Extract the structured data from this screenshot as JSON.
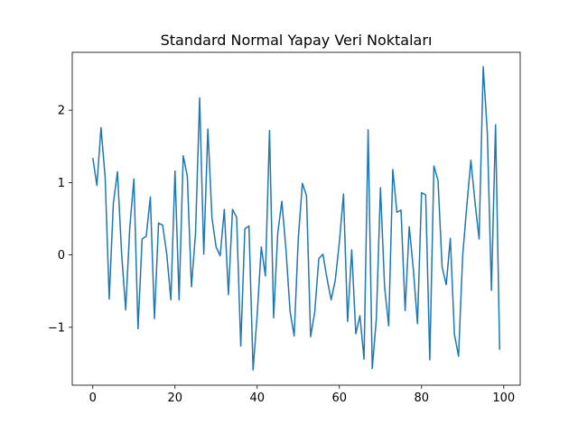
{
  "chart_data": {
    "type": "line",
    "title": "Standard Normal Yapay Veri Noktaları",
    "xlabel": "",
    "ylabel": "",
    "xlim": [
      -5,
      104
    ],
    "ylim": [
      -1.8,
      2.8
    ],
    "x_ticks": [
      0,
      20,
      40,
      60,
      80,
      100
    ],
    "y_ticks": [
      -1,
      0,
      1,
      2
    ],
    "y_tick_labels": [
      "−1",
      "0",
      "1",
      "2"
    ],
    "grid": false,
    "legend": "none",
    "line_color": "#1f77b4",
    "series": [
      {
        "x": [
          0,
          1,
          2,
          3,
          4,
          5,
          6,
          7,
          8,
          9,
          10,
          11,
          12,
          13,
          14,
          15,
          16,
          17,
          18,
          19,
          20,
          21,
          22,
          23,
          24,
          25,
          26,
          27,
          28,
          29,
          30,
          31,
          32,
          33,
          34,
          35,
          36,
          37,
          38,
          39,
          40,
          41,
          42,
          43,
          44,
          45,
          46,
          47,
          48,
          49,
          50,
          51,
          52,
          53,
          54,
          55,
          56,
          57,
          58,
          59,
          60,
          61,
          62,
          63,
          64,
          65,
          66,
          67,
          68,
          69,
          70,
          71,
          72,
          73,
          74,
          75,
          76,
          77,
          78,
          79,
          80,
          81,
          82,
          83,
          84,
          85,
          86,
          87,
          88,
          89,
          90,
          91,
          92,
          93,
          94,
          95,
          96,
          97,
          98,
          99
        ],
        "values": [
          1.34,
          0.96,
          1.76,
          1.08,
          -0.61,
          0.71,
          1.15,
          0.03,
          -0.76,
          0.38,
          1.05,
          -1.02,
          0.22,
          0.26,
          0.8,
          -0.88,
          0.44,
          0.41,
          0.01,
          -0.62,
          1.16,
          -0.62,
          1.37,
          1.09,
          -0.44,
          0.3,
          2.17,
          0.01,
          1.74,
          0.51,
          0.11,
          -0.01,
          0.63,
          -0.55,
          0.63,
          0.52,
          -1.26,
          0.36,
          0.4,
          -1.59,
          -0.83,
          0.11,
          -0.29,
          1.72,
          -0.87,
          0.3,
          0.74,
          0.08,
          -0.78,
          -1.12,
          0.23,
          0.99,
          0.82,
          -1.13,
          -0.79,
          -0.05,
          0.01,
          -0.33,
          -0.62,
          -0.35,
          0.18,
          0.84,
          -0.92,
          0.07,
          -1.09,
          -0.84,
          -1.44,
          1.73,
          -1.57,
          -0.88,
          0.93,
          -0.44,
          -0.98,
          1.18,
          0.59,
          0.62,
          -0.77,
          0.39,
          -0.2,
          -0.95,
          0.86,
          0.83,
          -1.45,
          1.23,
          1.03,
          -0.17,
          -0.41,
          0.23,
          -1.1,
          -1.4,
          -0.01,
          0.67,
          1.31,
          0.73,
          0.22,
          2.6,
          1.69,
          -0.49,
          1.8,
          -1.31
        ]
      }
    ]
  }
}
